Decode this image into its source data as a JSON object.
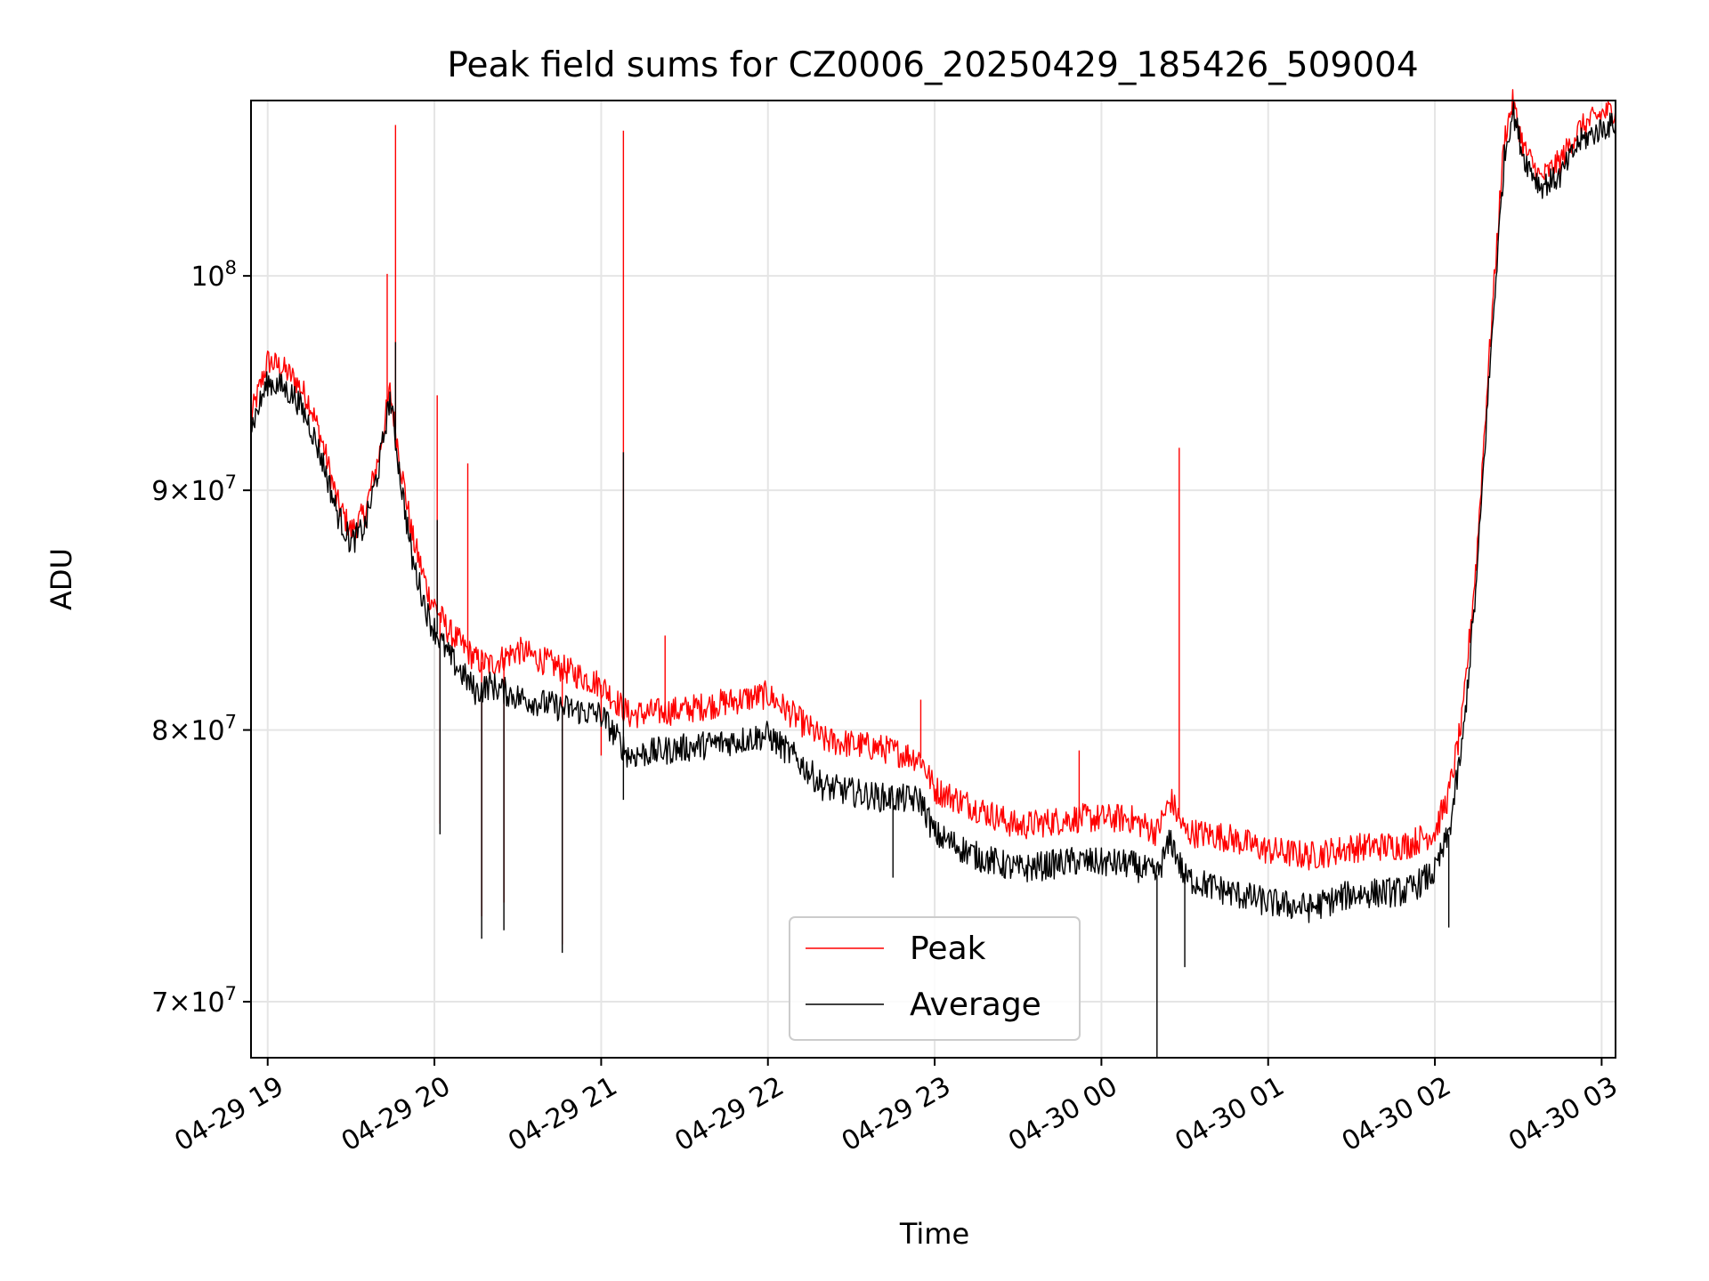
{
  "chart_data": {
    "type": "line",
    "title": "Peak field sums for CZ0006_20250429_185426_509004",
    "xlabel": "Time",
    "ylabel": "ADU",
    "y_scale": "log",
    "grid": true,
    "legend_position": "lower-center",
    "xlim": [
      "2025-04-29 18:54",
      "2025-04-30 03:05"
    ],
    "ylim": [
      68100000.0,
      109000000.0
    ],
    "x_ticks": [
      {
        "t": "2025-04-29 19:00",
        "label": "04-29 19"
      },
      {
        "t": "2025-04-29 20:00",
        "label": "04-29 20"
      },
      {
        "t": "2025-04-29 21:00",
        "label": "04-29 21"
      },
      {
        "t": "2025-04-29 22:00",
        "label": "04-29 22"
      },
      {
        "t": "2025-04-29 23:00",
        "label": "04-29 23"
      },
      {
        "t": "2025-04-30 00:00",
        "label": "04-30 00"
      },
      {
        "t": "2025-04-30 01:00",
        "label": "04-30 01"
      },
      {
        "t": "2025-04-30 02:00",
        "label": "04-30 02"
      },
      {
        "t": "2025-04-30 03:00",
        "label": "04-30 03"
      }
    ],
    "y_ticks": [
      {
        "value": 70000000.0,
        "base": "7",
        "exp": "7"
      },
      {
        "value": 80000000.0,
        "base": "8",
        "exp": "7"
      },
      {
        "value": 90000000.0,
        "base": "9",
        "exp": "7"
      },
      {
        "value": 100000000.0,
        "base": "",
        "exp": "8"
      }
    ],
    "series": [
      {
        "name": "Peak",
        "color": "#ff0000",
        "points": [
          [
            "2025-04-29 18:54",
            93.3
          ],
          [
            "2025-04-29 19:00",
            95.9
          ],
          [
            "2025-04-29 19:05",
            95.6
          ],
          [
            "2025-04-29 19:10",
            95.0
          ],
          [
            "2025-04-29 19:15",
            94.0
          ],
          [
            "2025-04-29 19:20",
            92.0
          ],
          [
            "2025-04-29 19:25",
            89.5
          ],
          [
            "2025-04-29 19:30",
            88.2
          ],
          [
            "2025-04-29 19:35",
            89.0
          ],
          [
            "2025-04-29 19:40",
            91.5
          ],
          [
            "2025-04-29 19:44",
            94.5
          ],
          [
            "2025-04-29 19:48",
            91.0
          ],
          [
            "2025-04-29 19:52",
            88.0
          ],
          [
            "2025-04-29 19:58",
            85.5
          ],
          [
            "2025-04-29 20:05",
            84.0
          ],
          [
            "2025-04-29 20:15",
            82.8
          ],
          [
            "2025-04-29 20:20",
            82.6
          ],
          [
            "2025-04-29 20:30",
            83.2
          ],
          [
            "2025-04-29 20:45",
            82.5
          ],
          [
            "2025-04-29 21:00",
            81.8
          ],
          [
            "2025-04-29 21:10",
            80.6
          ],
          [
            "2025-04-29 21:30",
            80.8
          ],
          [
            "2025-04-29 21:50",
            81.2
          ],
          [
            "2025-04-29 22:00",
            81.4
          ],
          [
            "2025-04-29 22:10",
            80.5
          ],
          [
            "2025-04-29 22:20",
            79.6
          ],
          [
            "2025-04-29 22:40",
            79.3
          ],
          [
            "2025-04-29 22:55",
            78.9
          ],
          [
            "2025-04-29 23:00",
            77.7
          ],
          [
            "2025-04-29 23:15",
            77.0
          ],
          [
            "2025-04-29 23:30",
            76.3
          ],
          [
            "2025-04-29 23:50",
            76.6
          ],
          [
            "2025-04-30 00:10",
            76.6
          ],
          [
            "2025-04-30 00:20",
            76.1
          ],
          [
            "2025-04-30 00:25",
            77.3
          ],
          [
            "2025-04-30 00:30",
            76.1
          ],
          [
            "2025-04-30 00:45",
            75.9
          ],
          [
            "2025-04-30 01:00",
            75.4
          ],
          [
            "2025-04-30 01:15",
            75.2
          ],
          [
            "2025-04-30 01:30",
            75.5
          ],
          [
            "2025-04-30 01:50",
            75.6
          ],
          [
            "2025-04-30 02:00",
            76.1
          ],
          [
            "2025-04-30 02:05",
            77.5
          ],
          [
            "2025-04-30 02:10",
            80.5
          ],
          [
            "2025-04-30 02:15",
            87.0
          ],
          [
            "2025-04-30 02:20",
            97.0
          ],
          [
            "2025-04-30 02:25",
            107.0
          ],
          [
            "2025-04-30 02:28",
            108.9
          ],
          [
            "2025-04-30 02:32",
            106.5
          ],
          [
            "2025-04-30 02:38",
            104.9
          ],
          [
            "2025-04-30 02:45",
            105.8
          ],
          [
            "2025-04-30 02:52",
            107.5
          ],
          [
            "2025-04-30 03:00",
            108.3
          ],
          [
            "2025-04-30 03:05",
            108.5
          ]
        ],
        "spikes": [
          [
            "2025-04-29 19:43",
            100.1
          ],
          [
            "2025-04-29 19:46",
            107.7
          ],
          [
            "2025-04-29 20:01",
            94.3
          ],
          [
            "2025-04-29 20:12",
            91.2
          ],
          [
            "2025-04-29 21:08",
            107.4
          ],
          [
            "2025-04-29 21:23",
            83.8
          ],
          [
            "2025-04-29 22:55",
            81.2
          ],
          [
            "2025-04-29 23:52",
            79.2
          ],
          [
            "2025-04-30 00:28",
            91.9
          ]
        ],
        "dips": [
          [
            "2025-04-29 20:02",
            76.4
          ],
          [
            "2025-04-29 20:17",
            73.0
          ],
          [
            "2025-04-29 20:25",
            73.5
          ],
          [
            "2025-04-29 20:46",
            72.0
          ],
          [
            "2025-04-29 21:00",
            79.0
          ]
        ]
      },
      {
        "name": "Average",
        "color": "#000000",
        "points": [
          [
            "2025-04-29 18:54",
            92.8
          ],
          [
            "2025-04-29 19:00",
            94.9
          ],
          [
            "2025-04-29 19:05",
            94.7
          ],
          [
            "2025-04-29 19:10",
            94.2
          ],
          [
            "2025-04-29 19:15",
            93.0
          ],
          [
            "2025-04-29 19:20",
            91.2
          ],
          [
            "2025-04-29 19:25",
            89.0
          ],
          [
            "2025-04-29 19:30",
            87.7
          ],
          [
            "2025-04-29 19:35",
            88.4
          ],
          [
            "2025-04-29 19:40",
            91.0
          ],
          [
            "2025-04-29 19:44",
            94.2
          ],
          [
            "2025-04-29 19:48",
            90.3
          ],
          [
            "2025-04-29 19:52",
            87.0
          ],
          [
            "2025-04-29 19:58",
            84.5
          ],
          [
            "2025-04-29 20:05",
            83.0
          ],
          [
            "2025-04-29 20:15",
            81.5
          ],
          [
            "2025-04-29 20:20",
            81.8
          ],
          [
            "2025-04-29 20:30",
            81.3
          ],
          [
            "2025-04-29 20:45",
            80.9
          ],
          [
            "2025-04-29 21:00",
            80.6
          ],
          [
            "2025-04-29 21:10",
            79.0
          ],
          [
            "2025-04-29 21:30",
            79.3
          ],
          [
            "2025-04-29 21:50",
            79.6
          ],
          [
            "2025-04-29 22:00",
            79.8
          ],
          [
            "2025-04-29 22:10",
            78.9
          ],
          [
            "2025-04-29 22:20",
            77.8
          ],
          [
            "2025-04-29 22:40",
            77.4
          ],
          [
            "2025-04-29 22:55",
            77.3
          ],
          [
            "2025-04-29 23:00",
            76.0
          ],
          [
            "2025-04-29 23:15",
            75.2
          ],
          [
            "2025-04-29 23:30",
            74.7
          ],
          [
            "2025-04-29 23:50",
            75.0
          ],
          [
            "2025-04-30 00:10",
            74.9
          ],
          [
            "2025-04-30 00:20",
            74.5
          ],
          [
            "2025-04-30 00:25",
            75.8
          ],
          [
            "2025-04-30 00:30",
            74.4
          ],
          [
            "2025-04-30 00:45",
            73.9
          ],
          [
            "2025-04-30 01:00",
            73.5
          ],
          [
            "2025-04-30 01:15",
            73.3
          ],
          [
            "2025-04-30 01:30",
            73.8
          ],
          [
            "2025-04-30 01:50",
            73.9
          ],
          [
            "2025-04-30 02:00",
            74.6
          ],
          [
            "2025-04-30 02:05",
            76.0
          ],
          [
            "2025-04-30 02:10",
            79.5
          ],
          [
            "2025-04-30 02:15",
            86.0
          ],
          [
            "2025-04-30 02:20",
            96.0
          ],
          [
            "2025-04-30 02:25",
            106.0
          ],
          [
            "2025-04-30 02:28",
            108.5
          ],
          [
            "2025-04-30 02:32",
            106.0
          ],
          [
            "2025-04-30 02:38",
            104.5
          ],
          [
            "2025-04-30 02:45",
            105.0
          ],
          [
            "2025-04-30 02:52",
            106.8
          ],
          [
            "2025-04-30 03:00",
            107.5
          ],
          [
            "2025-04-30 03:05",
            107.8
          ]
        ],
        "spikes": [
          [
            "2025-04-29 19:46",
            96.8
          ],
          [
            "2025-04-29 20:01",
            88.7
          ],
          [
            "2025-04-29 21:08",
            91.7
          ]
        ],
        "dips": [
          [
            "2025-04-29 20:02",
            76.0
          ],
          [
            "2025-04-29 20:17",
            72.2
          ],
          [
            "2025-04-29 20:25",
            72.5
          ],
          [
            "2025-04-29 20:46",
            71.7
          ],
          [
            "2025-04-29 21:08",
            77.3
          ],
          [
            "2025-04-29 22:45",
            74.4
          ],
          [
            "2025-04-30 00:20",
            68.1
          ],
          [
            "2025-04-30 00:30",
            71.2
          ],
          [
            "2025-04-30 02:05",
            72.6
          ]
        ]
      }
    ]
  }
}
